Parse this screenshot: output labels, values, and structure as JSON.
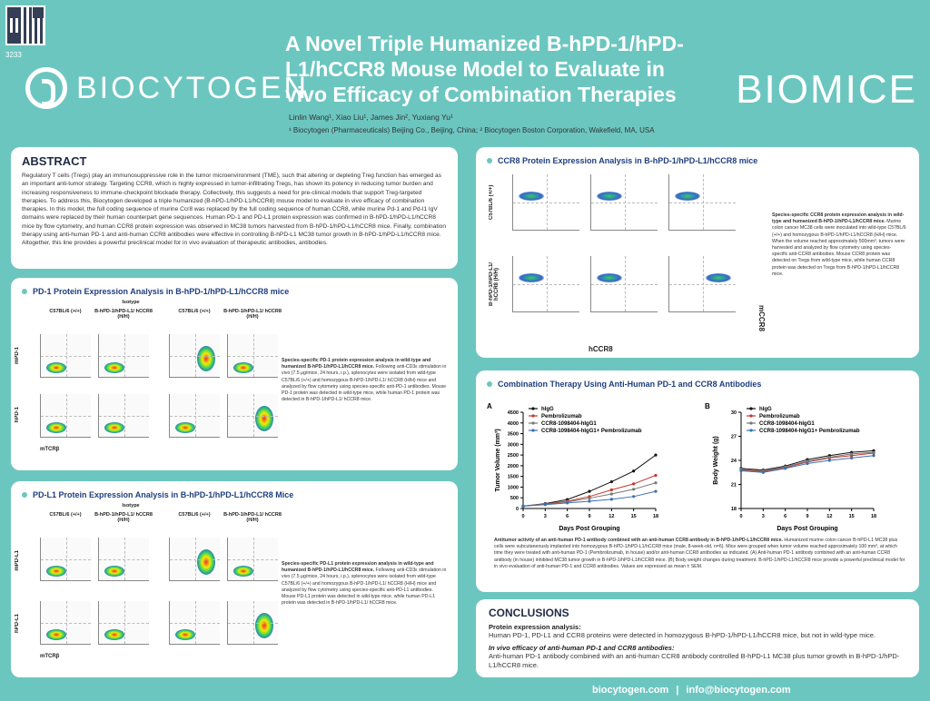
{
  "poster_id": "3233",
  "logos": {
    "left": "BIOCYTOGEN",
    "right": "BIOMICE"
  },
  "title": "A Novel Triple Humanized B-hPD-1/hPD-L1/hCCR8 Mouse Model to Evaluate in vivo Efficacy of Combination Therapies",
  "authors": "Linlin Wang¹, Xiao Liu¹, James Jin², Yuxiang Yu¹",
  "affiliations": "¹ Biocytogen (Pharmaceuticals) Beijing Co., Beijing, China;  ² Biocytogen Boston Corporation, Wakefield, MA, USA",
  "abstract": {
    "heading": "ABSTRACT",
    "text": "Regulatory T cells (Tregs) play an immunosuppressive role in the tumor microenvironment (TME), such that altering or depleting Treg function has emerged as an important anti-tumor strategy. Targeting CCR8, which is highly expressed in tumor-infiltrating Tregs, has shown its potency in reducing tumor burden and increasing responsiveness to immune-checkpoint blockade therapy. Collectively, this suggests a need for pre-clinical models that support Treg-targeted therapies. To address this, Biocytogen developed a triple humanized (B-hPD-1/hPD-L1/hCCR8) mouse model to evaluate in vivo efficacy of combination therapies. In this model, the full coding sequence of murine Ccr8 was replaced by the full coding sequence of human CCR8, while murine Pd-1 and Pd-l1 IgV domains were replaced by their human counterpart gene sequences. Human PD-1 and PD-L1 protein expression was confirmed in B-hPD-1/hPD-L1/hCCR8 mice by flow cytometry, and human CCR8 protein expression was observed in MC38 tumors harvested from B-hPD-1/hPD-L1/hCCR8 mice. Finally, combination therapy using anti-human PD-1 and anti-human CCR8 antibodies were effective in controlling B-hPD-L1 MC38 tumor growth in B-hPD-1/hPD-L1/hCCR8 mice. Altogether, this line provides a powerful preclinical model for in vivo evaluation of therapeutic antibodies, antibodies."
  },
  "pd1": {
    "heading": "PD-1 Protein Expression Analysis in B-hPD-1/hPD-L1/hCCR8 mice",
    "isotype": "Isotype",
    "cols": [
      "C57BL/6 (+/+)",
      "B-hPD-1/hPD-L1/ hCCR8 (H/H)",
      "C57BL/6 (+/+)",
      "B-hPD-1/hPD-L1/ hCCR8 (H/H)"
    ],
    "rows": [
      "mPD-1",
      "hPD-1"
    ],
    "xaxis": "mTCRβ",
    "caption_bold": "Species-specific PD-1 protein expression analysis in wild-type and humanized B-hPD-1/hPD-L1/hCCR8 mice.",
    "caption": " Following anti-CD3ε stimulation in vivo (7.5 μg/mice, 24 hours, i.p.), splenocytes were isolated from wild-type C57BL/6 (+/+) and homozygous B-hPD-1/hPD-L1/ hCCR8 (H/H) mice and analyzed by flow cytometry using species-specific anti-PD-1 antibodies. Mouse PD-1 protein was detected in wild-type mice, while human PD-1 protein was detected in B-hPD-1/hPD-L1/ hCCR8 mice."
  },
  "pdl1": {
    "heading": "PD-L1 Protein Expression Analysis in B-hPD-1/hPD-L1/hCCR8 Mice",
    "isotype": "Isotype",
    "cols": [
      "C57BL/6 (+/+)",
      "B-hPD-1/hPD-L1/ hCCR8 (H/H)",
      "C57BL/6 (+/+)",
      "B-hPD-1/hPD-L1/ hCCR8 (H/H)"
    ],
    "rows": [
      "mPD-L1",
      "hPD-L1"
    ],
    "xaxis": "mTCRβ",
    "caption_bold": "Species-specific PD-L1 protein expression analysis in wild-type and humanized B-hPD-1/hPD-L1/hCCR8 mice.",
    "caption": " Following anti-CD3ε stimulation in vivo (7.5 μg/mice, 24 hours, i.p.), splenocytes were isolated from wild-type C57BL/6 (+/+) and homozygous B-hPD-1/hPD-L1/ hCCR8 (H/H) mice and analyzed by flow cytometry using species-specific anti-PD-L1 antibodies. Mouse PD-L1 protein was detected in wild-type mice, while human PD-L1 protein was detected in B-hPD-1/hPD-L1/ hCCR8 mice."
  },
  "ccr8": {
    "heading": "CCR8 Protein Expression Analysis in B-hPD-1/hPD-L1/hCCR8 mice",
    "rows": [
      "C57BL/6 (+/+)",
      "B-hPD-1/hPD-L1/ hCCR8 (H/H)"
    ],
    "xaxis": "hCCR8",
    "yaxis": "mCCR8",
    "caption_bold": "Species-specific CCR8 protein expression analysis in wild-type and humanized B-hPD-1/hPD-L1/hCCR8 mice.",
    "caption": " Murine colon cancer MC38 cells were inoculated into wild-type C57BL/6 (+/+) and homozygous B-hPD-1/hPD-L1/hCCR8 (H/H) mice. When the volume reached approximately 500mm³, tumors were harvested and analyzed by flow cytometry using species-specific anti-CCR8 antibodies. Mouse CCR8 protein was detected on Tregs from wild-type mice, while human CCR8 protein was detected on Tregs from B-hPD-1/hPD-L1/hCCR8 mice."
  },
  "combo": {
    "heading": "Combination Therapy Using Anti-Human PD-1 and CCR8 Antibodies",
    "caption_bold": "Antitumor activity of an anti-human PD-1 antibody combined with an anti-human CCR8 antibody in B-hPD-1/hPD-L1/hCCR8 mice.",
    "caption": " Humanized murine colon cancer B-hPD-L1 MC38 plus cells were subcutaneously implanted into homozygous B-hPD-1/hPD-L1/hCCR8 mice (male, 8-week-old, n=6). Mice were grouped when tumor volume reached approximately 100 mm³, at which time they were treated with anti-human PD-1 (Pembrolizumab, in house) and/or anti-human CCR8 antibodies as indicated. (A) Anti-human PD-1 antibody combined with an anti-human CCR8 antibody (in house) inhibited MC38 tumor growth in B-hPD-1/hPD-L1/hCCR8 mice. (B) Body weight changes during treatment. B-hPD-1/hPD-L1/hCCR8 mice provide a powerful preclinical model for in vivo evaluation of anti-human PD-1 and CCR8 antibodies. Values are expressed as mean ± SEM."
  },
  "chart_data": [
    {
      "type": "line",
      "panel": "A",
      "xlabel": "Days Post Grouping",
      "ylabel": "Tumor Volume (mm³)",
      "x": [
        0,
        3,
        6,
        9,
        12,
        15,
        18
      ],
      "ylim": [
        0,
        4500
      ],
      "yticks": [
        0,
        500,
        1000,
        1500,
        2000,
        2500,
        3000,
        3500,
        4000,
        4500
      ],
      "series": [
        {
          "name": "hIgG",
          "color": "#111111",
          "values": [
            110,
            230,
            420,
            800,
            1250,
            1750,
            2500
          ]
        },
        {
          "name": "Pembrolizumab",
          "color": "#c0392b",
          "values": [
            110,
            210,
            340,
            560,
            870,
            1150,
            1550
          ]
        },
        {
          "name": "CCR8-1098404-hIgG1",
          "color": "#777777",
          "values": [
            110,
            200,
            310,
            480,
            680,
            900,
            1200
          ]
        },
        {
          "name": "CCR8-1098404-hIgG1+ Pembrolizumab",
          "color": "#3b6fb6",
          "values": [
            110,
            180,
            260,
            340,
            430,
            560,
            800
          ]
        }
      ]
    },
    {
      "type": "line",
      "panel": "B",
      "xlabel": "Days Post Grouping",
      "ylabel": "Body Weight (g)",
      "x": [
        0,
        3,
        6,
        9,
        12,
        15,
        18
      ],
      "ylim": [
        18,
        30
      ],
      "yticks": [
        18,
        21,
        24,
        27,
        30
      ],
      "series": [
        {
          "name": "hIgG",
          "color": "#111111",
          "values": [
            23.0,
            22.8,
            23.3,
            24.1,
            24.6,
            25.0,
            25.2
          ]
        },
        {
          "name": "Pembrolizumab",
          "color": "#c0392b",
          "values": [
            22.8,
            22.6,
            23.1,
            23.8,
            24.3,
            24.6,
            24.9
          ]
        },
        {
          "name": "CCR8-1098404-hIgG1",
          "color": "#777777",
          "values": [
            22.9,
            22.7,
            23.2,
            23.9,
            24.4,
            24.8,
            25.0
          ]
        },
        {
          "name": "CCR8-1098404-hIgG1+ Pembrolizumab",
          "color": "#3b6fb6",
          "values": [
            22.7,
            22.5,
            23.0,
            23.6,
            24.0,
            24.3,
            24.6
          ]
        }
      ]
    }
  ],
  "conclusions": {
    "heading": "CONCLUSIONS",
    "h1": "Protein expression analysis:",
    "p1": "Human PD-1, PD-L1 and CCR8 proteins were detected in homozygous B-hPD-1/hPD-L1/hCCR8 mice, but not in wild-type mice.",
    "h2": "In vivo efficacy of anti-human PD-1 and CCR8 antibodies:",
    "p2": "Anti-human PD-1 antibody combined with an anti-human CCR8 antibody controlled B-hPD-L1 MC38 plus tumor growth in B-hPD-1/hPD-L1/hCCR8 mice."
  },
  "footer": {
    "website": "biocytogen.com",
    "sep": "|",
    "email": "info@biocytogen.com"
  }
}
